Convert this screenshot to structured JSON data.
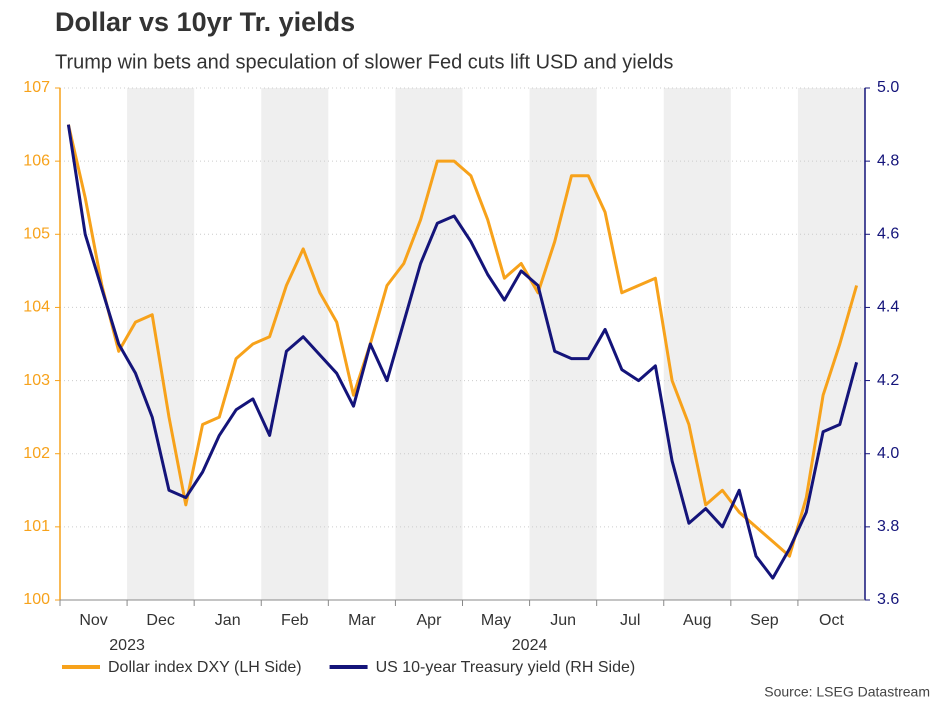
{
  "chart_data": {
    "type": "line",
    "title": "Dollar vs 10yr Tr. yields",
    "subtitle": "Trump win bets and speculation of slower Fed cuts lift USD and yields",
    "source": "Source: LSEG Datastream",
    "categories": [
      "Nov",
      null,
      null,
      null,
      "Dec",
      null,
      null,
      null,
      "Jan",
      null,
      null,
      null,
      "Feb",
      null,
      null,
      null,
      "Mar",
      null,
      null,
      null,
      "Apr",
      null,
      null,
      null,
      "May",
      null,
      null,
      null,
      "Jun",
      null,
      null,
      null,
      "Jul",
      null,
      null,
      null,
      "Aug",
      null,
      null,
      null,
      "Sep",
      null,
      null,
      null,
      "Oct",
      null,
      null,
      null
    ],
    "years": [
      "2023",
      null,
      null,
      null,
      null,
      null,
      null,
      null,
      "2024",
      null,
      null,
      null,
      null,
      null,
      null,
      null,
      null,
      null,
      null,
      null,
      null,
      null,
      null,
      null,
      null,
      null,
      null,
      null,
      null,
      null,
      null,
      null,
      null,
      null,
      null,
      null,
      null,
      null,
      null,
      null,
      null,
      null,
      null,
      null,
      null,
      null,
      null,
      null
    ],
    "series": [
      {
        "name": "Dollar index DXY (LH Side)",
        "color": "#f7a21b",
        "axis": "y",
        "values": [
          106.5,
          105.5,
          104.3,
          103.4,
          103.8,
          103.9,
          102.5,
          101.3,
          102.4,
          102.5,
          103.3,
          103.5,
          103.6,
          104.3,
          104.8,
          104.2,
          103.8,
          102.8,
          103.5,
          104.3,
          104.6,
          105.2,
          106.0,
          106.0,
          105.8,
          105.2,
          104.4,
          104.6,
          104.2,
          104.9,
          105.8,
          105.8,
          105.3,
          104.2,
          104.3,
          104.4,
          103.0,
          102.4,
          101.3,
          101.5,
          101.2,
          101.0,
          100.8,
          100.6,
          101.4,
          102.8,
          103.5,
          104.3
        ]
      },
      {
        "name": "US 10-year Treasury yield (RH Side)",
        "color": "#14147a",
        "axis": "y2",
        "values": [
          4.9,
          4.6,
          4.45,
          4.3,
          4.22,
          4.1,
          3.9,
          3.88,
          3.95,
          4.05,
          4.12,
          4.15,
          4.05,
          4.28,
          4.32,
          4.27,
          4.22,
          4.13,
          4.3,
          4.2,
          4.36,
          4.52,
          4.63,
          4.65,
          4.58,
          4.49,
          4.42,
          4.5,
          4.46,
          4.28,
          4.26,
          4.26,
          4.34,
          4.23,
          4.2,
          4.24,
          3.98,
          3.81,
          3.85,
          3.8,
          3.9,
          3.72,
          3.66,
          3.74,
          3.84,
          4.06,
          4.08,
          4.25
        ]
      }
    ],
    "ylim": [
      100,
      107
    ],
    "yticks": [
      100,
      101,
      102,
      103,
      104,
      105,
      106,
      107
    ],
    "y2lim": [
      3.6,
      5.0
    ],
    "y2ticks": [
      3.6,
      3.8,
      {
        "value": 4,
        "label": "4.0"
      },
      4.2,
      4.4,
      4.6,
      4.8,
      {
        "value": 5,
        "label": "5.0"
      }
    ],
    "grid": true,
    "shade_alternate_months": true
  }
}
